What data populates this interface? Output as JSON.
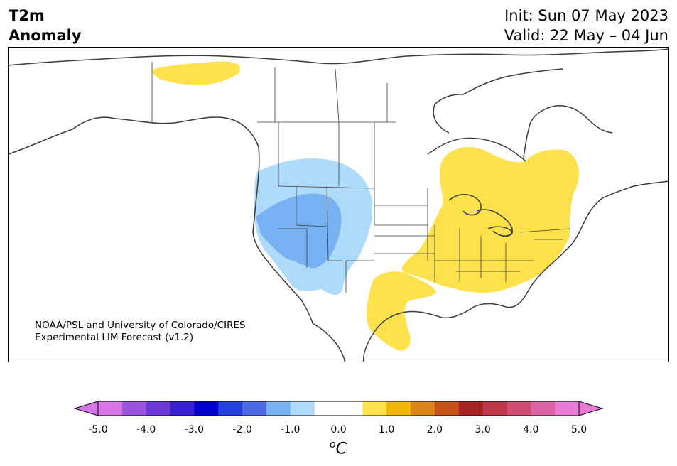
{
  "header": {
    "variable": "T2m",
    "quantity": "Anomaly",
    "init": "Init: Sun 07 May 2023",
    "valid": "Valid: 22 May – 04 Jun"
  },
  "credit": {
    "line1": "NOAA/PSL and University of Colorado/CIRES",
    "line2": "Experimental LIM Forecast (v1.2)"
  },
  "map": {
    "region": "North America",
    "features": [
      "coastlines",
      "country borders",
      "state/province borders"
    ],
    "anomaly_areas": [
      {
        "region": "Northwest US / Great Basin",
        "category": "-1.0 to -0.5",
        "color": "#aedafb"
      },
      {
        "region": "Oregon, Idaho, Nevada core",
        "category": "-1.5 to -1.0",
        "color": "#78b2f2"
      },
      {
        "region": "Eastern US, Great Lakes, Ohio Valley",
        "category": "0.5 to 1.0",
        "color": "#fde24e"
      },
      {
        "region": "Southern Texas / Northeast Mexico",
        "category": "0.5 to 1.0",
        "color": "#fde24e"
      },
      {
        "region": "Northern Ontario / Hudson Bay",
        "category": "0.5 to 1.0",
        "color": "#fde24e"
      },
      {
        "region": "Alaska / Yukon Arctic coast",
        "category": "0.5 to 1.0",
        "color": "#fde24e"
      }
    ]
  },
  "colorbar": {
    "colors": [
      "#d775e8",
      "#9a55e0",
      "#6b38d9",
      "#3a22d2",
      "#0000cd",
      "#2441db",
      "#4a6ae6",
      "#78b2f2",
      "#aedafb",
      "#ffffff",
      "#ffffff",
      "#fde24e",
      "#f0b609",
      "#da8514",
      "#c55416",
      "#a62322",
      "#c0394a",
      "#d04e75",
      "#dc62a5",
      "#e87bd6"
    ],
    "ticks": [
      "-5.0",
      "-4.0",
      "-3.0",
      "-2.0",
      "-1.0",
      "0.0",
      "1.0",
      "2.0",
      "3.0",
      "4.0",
      "5.0"
    ],
    "unit_sup": "o",
    "unit": "C"
  }
}
